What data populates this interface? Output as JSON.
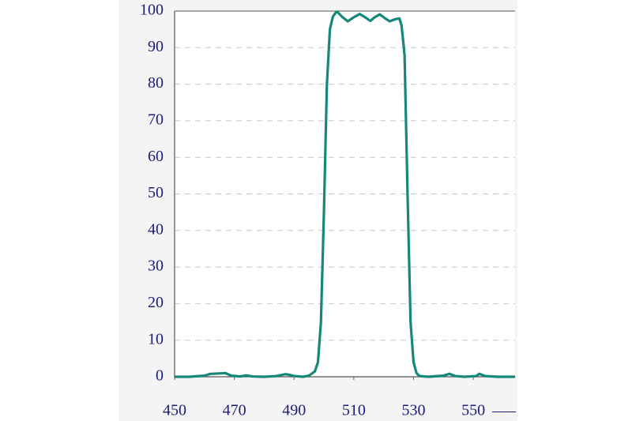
{
  "chart_data": {
    "type": "line",
    "x": [
      450,
      455,
      460,
      462,
      465,
      467,
      469,
      472,
      474,
      476,
      480,
      484,
      487,
      488,
      490,
      493,
      495,
      497,
      498,
      499,
      500,
      501,
      502,
      503,
      504,
      504.5,
      506,
      508,
      510,
      512,
      514,
      515.5,
      517,
      518.7,
      520.5,
      522,
      524,
      525.3,
      526,
      527,
      528,
      529,
      530,
      531,
      532,
      535,
      540,
      542,
      544,
      547,
      551,
      552,
      554,
      558,
      564
    ],
    "series": [
      {
        "color": "#168878",
        "values": [
          0,
          0,
          0.3,
          0.8,
          0.9,
          1.0,
          0.3,
          0.1,
          0.4,
          0.1,
          0,
          0.2,
          0.7,
          0.6,
          0.2,
          0,
          0.3,
          1.5,
          4,
          15,
          45,
          80,
          95,
          98.5,
          99.6,
          99.8,
          98.5,
          97.2,
          98.3,
          99.2,
          98.2,
          97.3,
          98.3,
          99.1,
          98,
          97.2,
          97.8,
          98,
          96,
          88,
          50,
          15,
          4,
          1,
          0.2,
          0,
          0.3,
          0.8,
          0.2,
          0,
          0.2,
          0.8,
          0.2,
          0,
          0
        ]
      }
    ],
    "xlim": [
      450,
      564
    ],
    "xticks": [
      450,
      470,
      490,
      510,
      530,
      550
    ],
    "ylim": [
      0,
      100
    ],
    "yticks": [
      0,
      10,
      20,
      30,
      40,
      50,
      60,
      70,
      80,
      90,
      100
    ],
    "grid": true,
    "annotation": "___"
  }
}
